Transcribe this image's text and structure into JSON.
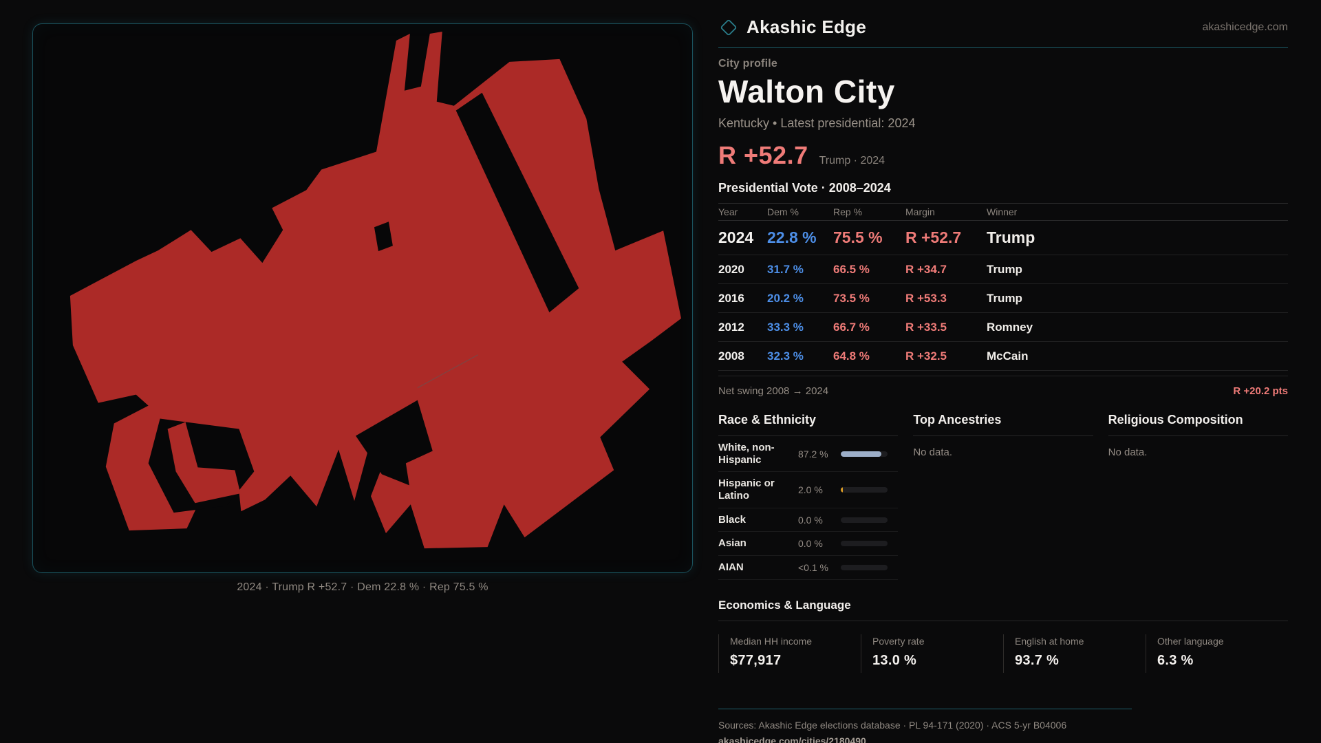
{
  "colors": {
    "dem": "#4d8fe8",
    "rep": "#ef7b78",
    "teal_line": "#1d5f6b",
    "accent_teal": "#2a7e8c",
    "map_fill": "#ac2a27",
    "bar_white": "#9dafc9",
    "bar_hispanic": "#d99b26"
  },
  "brand": {
    "name": "Akashic Edge",
    "site": "akashicedge.com"
  },
  "map": {
    "caption": "2024 · Trump R +52.7 · Dem 22.8 % · Rep 75.5 %"
  },
  "profile": {
    "kicker": "City profile",
    "title": "Walton City",
    "subtitle": "Kentucky • Latest presidential: 2024",
    "margin_value": "R +52.7",
    "margin_note": "Trump · 2024"
  },
  "vote_table": {
    "title": "Presidential Vote · 2008–2024",
    "columns": {
      "year": "Year",
      "dem": "Dem %",
      "rep": "Rep %",
      "margin": "Margin",
      "winner": "Winner"
    },
    "rows": [
      {
        "year": "2024",
        "dem": "22.8 %",
        "rep": "75.5 %",
        "margin": "R +52.7",
        "winner": "Trump"
      },
      {
        "year": "2020",
        "dem": "31.7 %",
        "rep": "66.5 %",
        "margin": "R +34.7",
        "winner": "Trump"
      },
      {
        "year": "2016",
        "dem": "20.2 %",
        "rep": "73.5 %",
        "margin": "R +53.3",
        "winner": "Trump"
      },
      {
        "year": "2012",
        "dem": "33.3 %",
        "rep": "66.7 %",
        "margin": "R +33.5",
        "winner": "Romney"
      },
      {
        "year": "2008",
        "dem": "32.3 %",
        "rep": "64.8 %",
        "margin": "R +32.5",
        "winner": "McCain"
      }
    ],
    "net_swing_label": "Net swing 2008 → 2024",
    "net_swing_value": "R +20.2 pts"
  },
  "race": {
    "heading": "Race & Ethnicity",
    "rows": [
      {
        "label": "White, non-Hispanic",
        "value": "87.2 %",
        "pct": 87.2,
        "color": "#9dafc9"
      },
      {
        "label": "Hispanic or Latino",
        "value": "2.0 %",
        "pct": 2.0,
        "color": "#d99b26"
      },
      {
        "label": "Black",
        "value": "0.0 %",
        "pct": 0,
        "color": "#9dafc9"
      },
      {
        "label": "Asian",
        "value": "0.0 %",
        "pct": 0,
        "color": "#9dafc9"
      },
      {
        "label": "AIAN",
        "value": "<0.1 %",
        "pct": 0,
        "color": "#9dafc9"
      }
    ]
  },
  "ancestries": {
    "heading": "Top Ancestries",
    "empty": "No data."
  },
  "religion": {
    "heading": "Religious Composition",
    "empty": "No data."
  },
  "economics": {
    "heading": "Economics & Language",
    "stats": [
      {
        "label": "Median HH income",
        "value": "$77,917"
      },
      {
        "label": "Poverty rate",
        "value": "13.0 %"
      },
      {
        "label": "English at home",
        "value": "93.7 %"
      },
      {
        "label": "Other language",
        "value": "6.3 %"
      }
    ]
  },
  "footer": {
    "sources": "Sources: Akashic Edge elections database · PL 94-171 (2020) · ACS 5-yr B04006",
    "link": "akashicedge.com/cities/2180490"
  }
}
